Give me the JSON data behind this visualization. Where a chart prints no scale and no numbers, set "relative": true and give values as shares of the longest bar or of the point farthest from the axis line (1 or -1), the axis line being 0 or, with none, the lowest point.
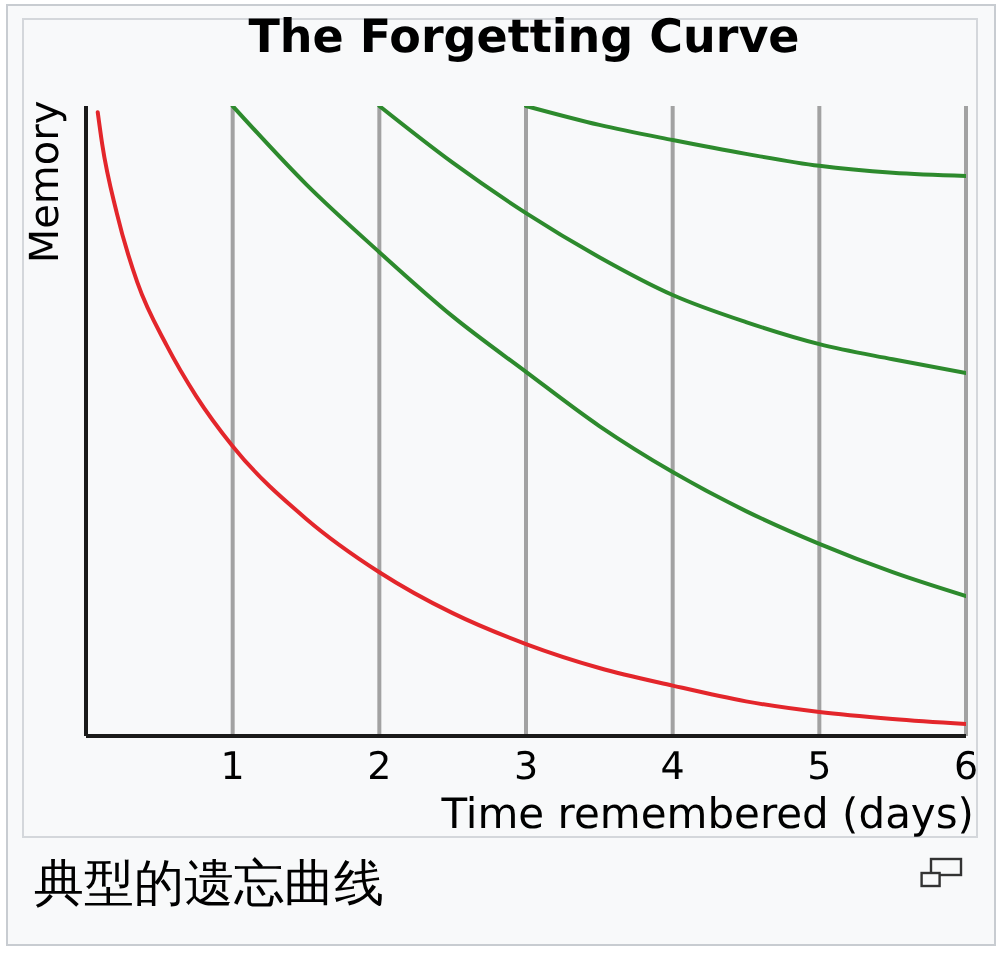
{
  "chart_data": {
    "type": "line",
    "title": "The Forgetting Curve",
    "xlabel": "Time remembered (days)",
    "ylabel": "Memory",
    "relative": true,
    "xlim": [
      0,
      6
    ],
    "xticks": [
      1,
      2,
      3,
      4,
      5,
      6
    ],
    "grid": "x",
    "annotations": [
      "典型的遗忘曲线"
    ],
    "series": [
      {
        "color": "#e3262b",
        "x": [
          0.08,
          0.11,
          0.21,
          0.35,
          0.55,
          0.75,
          1,
          1.5,
          2,
          2.5,
          3,
          3.5,
          4,
          4.5,
          5,
          5.5,
          6
        ],
        "values": [
          0.99,
          0.94,
          0.83,
          0.72,
          0.62,
          0.54,
          0.46,
          0.345,
          0.26,
          0.195,
          0.146,
          0.108,
          0.08,
          0.055,
          0.038,
          0.027,
          0.019
        ]
      },
      {
        "color": "#2d8a2d",
        "x": [
          1,
          1.5,
          2,
          2.5,
          3,
          3.5,
          4,
          4.5,
          5,
          5.5,
          6
        ],
        "values": [
          1,
          0.876,
          0.768,
          0.666,
          0.578,
          0.492,
          0.419,
          0.357,
          0.305,
          0.26,
          0.222
        ]
      },
      {
        "color": "#2d8a2d",
        "x": [
          2,
          2.5,
          3,
          3.5,
          4,
          4.5,
          5,
          5.5,
          6
        ],
        "values": [
          1,
          0.91,
          0.83,
          0.76,
          0.7,
          0.657,
          0.622,
          0.598,
          0.576
        ]
      },
      {
        "color": "#2d8a2d",
        "x": [
          3,
          3.5,
          4,
          4.5,
          5,
          5.5,
          6
        ],
        "values": [
          1,
          0.97,
          0.946,
          0.924,
          0.905,
          0.894,
          0.889
        ]
      }
    ]
  }
}
